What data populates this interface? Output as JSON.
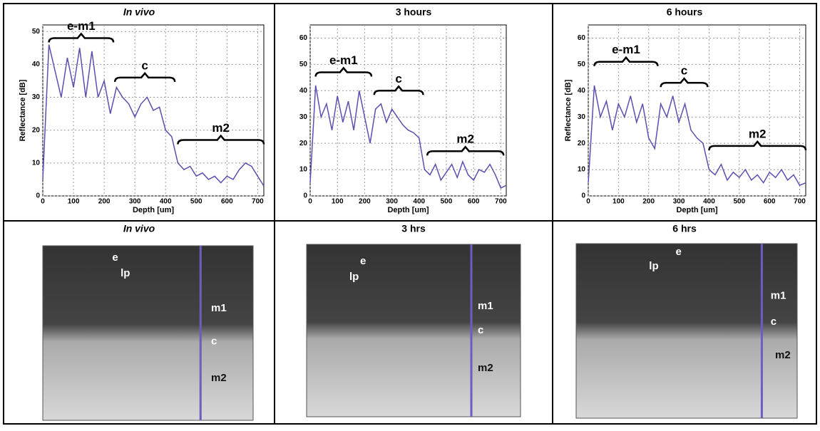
{
  "chart_data": [
    {
      "type": "line",
      "title": "In vivo",
      "xlabel": "Depth [um]",
      "ylabel": "Reflectance [dB]",
      "xlim": [
        0,
        720
      ],
      "xticks": [
        0,
        100,
        200,
        300,
        400,
        500,
        600,
        700
      ],
      "ylim": [
        0,
        52
      ],
      "yticks": [
        0,
        10,
        20,
        30,
        40,
        50
      ],
      "grid": true,
      "annotations": [
        "e-m1",
        "c",
        "m2"
      ],
      "x": [
        0,
        20,
        40,
        60,
        80,
        100,
        120,
        140,
        160,
        180,
        200,
        220,
        240,
        260,
        280,
        300,
        320,
        340,
        360,
        380,
        400,
        420,
        440,
        460,
        480,
        500,
        520,
        540,
        560,
        580,
        600,
        620,
        640,
        660,
        680,
        700,
        720
      ],
      "series": [
        {
          "color": "#5b4fb0",
          "values": [
            5,
            46,
            38,
            30,
            42,
            33,
            45,
            30,
            44,
            30,
            35,
            25,
            33,
            30,
            28,
            24,
            28,
            30,
            26,
            27,
            20,
            18,
            10,
            8,
            9,
            6,
            7,
            5,
            6,
            4,
            6,
            5,
            8,
            10,
            9,
            6,
            3
          ]
        }
      ]
    },
    {
      "type": "line",
      "title": "3 hours",
      "xlabel": "Depth [um]",
      "ylabel": null,
      "xlim": [
        0,
        720
      ],
      "xticks": [
        0,
        100,
        200,
        300,
        400,
        500,
        600,
        700
      ],
      "ylim": [
        0,
        65
      ],
      "yticks": [
        0,
        10,
        20,
        30,
        40,
        50,
        60
      ],
      "grid": true,
      "annotations": [
        "e-m1",
        "c",
        "m2"
      ],
      "x": [
        0,
        20,
        40,
        60,
        80,
        100,
        120,
        140,
        160,
        180,
        200,
        220,
        240,
        260,
        280,
        300,
        320,
        340,
        360,
        380,
        400,
        420,
        440,
        460,
        480,
        500,
        520,
        540,
        560,
        580,
        600,
        620,
        640,
        660,
        680,
        700,
        720
      ],
      "series": [
        {
          "color": "#5b4fb0",
          "values": [
            5,
            42,
            30,
            35,
            25,
            38,
            28,
            36,
            25,
            40,
            30,
            20,
            33,
            35,
            28,
            33,
            30,
            27,
            25,
            24,
            22,
            10,
            8,
            12,
            6,
            9,
            12,
            7,
            13,
            8,
            6,
            10,
            9,
            12,
            8,
            3,
            4
          ]
        }
      ]
    },
    {
      "type": "line",
      "title": "6 hours",
      "xlabel": "Depth [um]",
      "ylabel": "Reflectance [dB]",
      "xlim": [
        0,
        720
      ],
      "xticks": [
        0,
        100,
        200,
        300,
        400,
        500,
        600,
        700
      ],
      "ylim": [
        0,
        65
      ],
      "yticks": [
        0,
        10,
        20,
        30,
        40,
        50,
        60
      ],
      "grid": true,
      "annotations": [
        "e-m1",
        "c",
        "m2"
      ],
      "x": [
        0,
        20,
        40,
        60,
        80,
        100,
        120,
        140,
        160,
        180,
        200,
        220,
        240,
        260,
        280,
        300,
        320,
        340,
        360,
        380,
        400,
        420,
        440,
        460,
        480,
        500,
        520,
        540,
        560,
        580,
        600,
        620,
        640,
        660,
        680,
        700,
        720
      ],
      "series": [
        {
          "color": "#5b4fb0",
          "values": [
            5,
            42,
            30,
            36,
            25,
            35,
            30,
            38,
            28,
            35,
            22,
            18,
            35,
            30,
            38,
            28,
            35,
            25,
            22,
            20,
            10,
            8,
            12,
            6,
            9,
            7,
            10,
            6,
            8,
            5,
            9,
            7,
            10,
            6,
            8,
            4,
            5
          ]
        }
      ]
    }
  ],
  "images": [
    {
      "title": "In vivo",
      "labels": [
        "e",
        "lp",
        "m1",
        "c",
        "m2"
      ]
    },
    {
      "title": "3 hrs",
      "labels": [
        "e",
        "lp",
        "m1",
        "c",
        "m2"
      ]
    },
    {
      "title": "6 hrs",
      "labels": [
        "e",
        "lp",
        "m1",
        "c",
        "m2"
      ]
    }
  ]
}
